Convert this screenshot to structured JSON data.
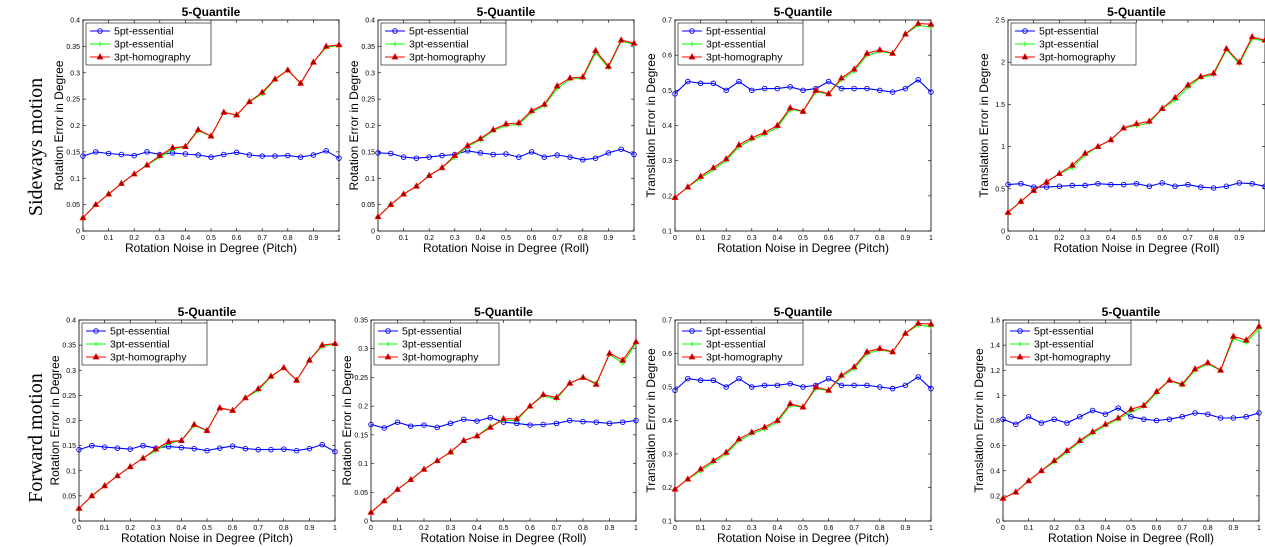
{
  "row_labels": [
    "Sideways motion",
    "Forward motion"
  ],
  "colors": {
    "5pt-essential": "#0000ff",
    "3pt-essential": "#00ff00",
    "3pt-homography": "#ff0000",
    "homography_marker_fill": "#8b0000"
  },
  "chart_data": [
    {
      "type": "line",
      "title": "5-Quantile",
      "xlabel": "Rotation Noise in Degree (Pitch)",
      "ylabel": "Rotation Error in Degree",
      "xlim": [
        0,
        1
      ],
      "ylim": [
        0,
        0.4
      ],
      "xticks": [
        "0",
        "0.1",
        "0.2",
        "0.3",
        "0.4",
        "0.5",
        "0.6",
        "0.7",
        "0.8",
        "0.9",
        "1"
      ],
      "yticks": [
        "0",
        "0.05",
        "0.1",
        "0.15",
        "0.2",
        "0.25",
        "0.3",
        "0.35",
        "0.4"
      ],
      "legend": "top-left",
      "x": [
        0,
        0.05,
        0.1,
        0.15,
        0.2,
        0.25,
        0.3,
        0.35,
        0.4,
        0.45,
        0.5,
        0.55,
        0.6,
        0.65,
        0.7,
        0.75,
        0.8,
        0.85,
        0.9,
        0.95,
        1
      ],
      "series": [
        {
          "name": "5pt-essential",
          "marker": "circle",
          "values": [
            0.142,
            0.15,
            0.147,
            0.145,
            0.143,
            0.15,
            0.145,
            0.148,
            0.146,
            0.144,
            0.14,
            0.145,
            0.149,
            0.144,
            0.142,
            0.142,
            0.143,
            0.14,
            0.144,
            0.152,
            0.138
          ]
        },
        {
          "name": "3pt-essential",
          "marker": "plus",
          "values": [
            0.025,
            0.05,
            0.07,
            0.09,
            0.108,
            0.125,
            0.14,
            0.155,
            0.16,
            0.19,
            0.18,
            0.225,
            0.22,
            0.245,
            0.26,
            0.287,
            0.305,
            0.28,
            0.32,
            0.348,
            0.352
          ]
        },
        {
          "name": "3pt-homography",
          "marker": "triangle",
          "values": [
            0.025,
            0.05,
            0.07,
            0.09,
            0.108,
            0.125,
            0.143,
            0.158,
            0.16,
            0.192,
            0.18,
            0.225,
            0.22,
            0.245,
            0.263,
            0.288,
            0.305,
            0.28,
            0.32,
            0.35,
            0.353
          ]
        }
      ]
    },
    {
      "type": "line",
      "title": "5-Quantile",
      "xlabel": "Rotation Noise in Degree (Roll)",
      "ylabel": "Rotation Error in Degree",
      "xlim": [
        0,
        1
      ],
      "ylim": [
        0,
        0.4
      ],
      "xticks": [
        "0",
        "0.1",
        "0.2",
        "0.3",
        "0.4",
        "0.5",
        "0.6",
        "0.7",
        "0.8",
        "0.9",
        "1"
      ],
      "yticks": [
        "0",
        "0.05",
        "0.1",
        "0.15",
        "0.2",
        "0.25",
        "0.3",
        "0.35",
        "0.4"
      ],
      "legend": "top-left",
      "x": [
        0,
        0.05,
        0.1,
        0.15,
        0.2,
        0.25,
        0.3,
        0.35,
        0.4,
        0.45,
        0.5,
        0.55,
        0.6,
        0.65,
        0.7,
        0.75,
        0.8,
        0.85,
        0.9,
        0.95,
        1
      ],
      "series": [
        {
          "name": "5pt-essential",
          "marker": "circle",
          "values": [
            0.148,
            0.147,
            0.14,
            0.138,
            0.14,
            0.143,
            0.145,
            0.152,
            0.148,
            0.145,
            0.146,
            0.14,
            0.15,
            0.14,
            0.144,
            0.14,
            0.135,
            0.138,
            0.148,
            0.155,
            0.145
          ]
        },
        {
          "name": "3pt-essential",
          "marker": "plus",
          "values": [
            0.027,
            0.05,
            0.07,
            0.085,
            0.105,
            0.12,
            0.14,
            0.16,
            0.173,
            0.19,
            0.2,
            0.202,
            0.225,
            0.238,
            0.27,
            0.288,
            0.29,
            0.338,
            0.31,
            0.36,
            0.354
          ]
        },
        {
          "name": "3pt-homography",
          "marker": "triangle",
          "values": [
            0.027,
            0.05,
            0.07,
            0.085,
            0.105,
            0.12,
            0.143,
            0.162,
            0.175,
            0.192,
            0.203,
            0.205,
            0.228,
            0.24,
            0.275,
            0.29,
            0.292,
            0.342,
            0.312,
            0.362,
            0.356
          ]
        }
      ]
    },
    {
      "type": "line",
      "title": "5-Quantile",
      "xlabel": "Rotation Noise in Degree (Pitch)",
      "ylabel": "Translation Error in Degree",
      "xlim": [
        0,
        1
      ],
      "ylim": [
        0.1,
        0.7
      ],
      "xticks": [
        "0",
        "0.1",
        "0.2",
        "0.3",
        "0.4",
        "0.5",
        "0.6",
        "0.7",
        "0.8",
        "0.9",
        "1"
      ],
      "yticks": [
        "0.1",
        "0.2",
        "0.3",
        "0.4",
        "0.5",
        "0.6",
        "0.7"
      ],
      "legend": "top-left",
      "x": [
        0,
        0.05,
        0.1,
        0.15,
        0.2,
        0.25,
        0.3,
        0.35,
        0.4,
        0.45,
        0.5,
        0.55,
        0.6,
        0.65,
        0.7,
        0.75,
        0.8,
        0.85,
        0.9,
        0.95,
        1
      ],
      "series": [
        {
          "name": "5pt-essential",
          "marker": "circle",
          "values": [
            0.49,
            0.525,
            0.52,
            0.52,
            0.5,
            0.525,
            0.5,
            0.505,
            0.505,
            0.51,
            0.5,
            0.505,
            0.525,
            0.505,
            0.505,
            0.505,
            0.5,
            0.495,
            0.505,
            0.53,
            0.495
          ]
        },
        {
          "name": "3pt-essential",
          "marker": "plus",
          "values": [
            0.195,
            0.225,
            0.25,
            0.275,
            0.3,
            0.34,
            0.36,
            0.375,
            0.395,
            0.445,
            0.44,
            0.495,
            0.49,
            0.53,
            0.555,
            0.6,
            0.61,
            0.605,
            0.66,
            0.685,
            0.68
          ]
        },
        {
          "name": "3pt-homography",
          "marker": "triangle",
          "values": [
            0.195,
            0.225,
            0.255,
            0.28,
            0.305,
            0.345,
            0.365,
            0.38,
            0.4,
            0.45,
            0.44,
            0.5,
            0.49,
            0.535,
            0.56,
            0.605,
            0.615,
            0.605,
            0.66,
            0.69,
            0.688
          ]
        }
      ]
    },
    {
      "type": "line",
      "title": "5-Quantile",
      "xlabel": "Rotation Noise in Degree (Roll)",
      "ylabel": "Translation Error in Degree",
      "xlim": [
        0,
        1
      ],
      "ylim": [
        0,
        2.5
      ],
      "xticks": [
        "0",
        "0.1",
        "0.2",
        "0.3",
        "0.4",
        "0.5",
        "0.6",
        "0.7",
        "0.8",
        "0.9"
      ],
      "yticks": [
        "0",
        "0.5",
        "1",
        "1.5",
        "2",
        "2.5"
      ],
      "legend": "top-left",
      "x": [
        0,
        0.05,
        0.1,
        0.15,
        0.2,
        0.25,
        0.3,
        0.35,
        0.4,
        0.45,
        0.5,
        0.55,
        0.6,
        0.65,
        0.7,
        0.75,
        0.8,
        0.85,
        0.9,
        0.95,
        1
      ],
      "series": [
        {
          "name": "5pt-essential",
          "marker": "circle",
          "values": [
            0.55,
            0.56,
            0.52,
            0.52,
            0.53,
            0.54,
            0.54,
            0.56,
            0.55,
            0.55,
            0.56,
            0.53,
            0.57,
            0.53,
            0.55,
            0.52,
            0.51,
            0.53,
            0.57,
            0.56,
            0.53
          ]
        },
        {
          "name": "3pt-essential",
          "marker": "plus",
          "values": [
            0.22,
            0.35,
            0.48,
            0.58,
            0.68,
            0.75,
            0.9,
            1.0,
            1.08,
            1.22,
            1.25,
            1.28,
            1.45,
            1.55,
            1.7,
            1.82,
            1.85,
            2.15,
            1.98,
            2.28,
            2.25
          ]
        },
        {
          "name": "3pt-homography",
          "marker": "triangle",
          "values": [
            0.22,
            0.35,
            0.48,
            0.58,
            0.68,
            0.78,
            0.92,
            1.0,
            1.08,
            1.22,
            1.27,
            1.3,
            1.45,
            1.58,
            1.73,
            1.83,
            1.87,
            2.16,
            2.0,
            2.3,
            2.26
          ]
        }
      ]
    },
    {
      "type": "line",
      "title": "5-Quantile",
      "xlabel": "Rotation Noise in Degree (Pitch)",
      "ylabel": "Rotation Error in Degree",
      "xlim": [
        0,
        1
      ],
      "ylim": [
        0,
        0.4
      ],
      "xticks": [
        "0",
        "0.1",
        "0.2",
        "0.3",
        "0.4",
        "0.5",
        "0.6",
        "0.7",
        "0.8",
        "0.9",
        "1"
      ],
      "yticks": [
        "0",
        "0.05",
        "0.1",
        "0.15",
        "0.2",
        "0.25",
        "0.3",
        "0.35",
        "0.4"
      ],
      "legend": "top-left",
      "x": [
        0,
        0.05,
        0.1,
        0.15,
        0.2,
        0.25,
        0.3,
        0.35,
        0.4,
        0.45,
        0.5,
        0.55,
        0.6,
        0.65,
        0.7,
        0.75,
        0.8,
        0.85,
        0.9,
        0.95,
        1
      ],
      "series": [
        {
          "name": "5pt-essential",
          "marker": "circle",
          "values": [
            0.142,
            0.15,
            0.147,
            0.145,
            0.143,
            0.15,
            0.145,
            0.148,
            0.146,
            0.144,
            0.14,
            0.145,
            0.149,
            0.144,
            0.142,
            0.142,
            0.143,
            0.14,
            0.144,
            0.152,
            0.138
          ]
        },
        {
          "name": "3pt-essential",
          "marker": "plus",
          "values": [
            0.025,
            0.05,
            0.07,
            0.09,
            0.108,
            0.125,
            0.14,
            0.155,
            0.16,
            0.19,
            0.18,
            0.225,
            0.22,
            0.245,
            0.26,
            0.287,
            0.305,
            0.28,
            0.32,
            0.348,
            0.352
          ]
        },
        {
          "name": "3pt-homography",
          "marker": "triangle",
          "values": [
            0.025,
            0.05,
            0.07,
            0.09,
            0.108,
            0.125,
            0.143,
            0.158,
            0.16,
            0.192,
            0.18,
            0.225,
            0.22,
            0.245,
            0.263,
            0.288,
            0.305,
            0.28,
            0.32,
            0.35,
            0.353
          ]
        }
      ]
    },
    {
      "type": "line",
      "title": "5-Quantile",
      "xlabel": "Rotation Noise in Degree (Roll)",
      "ylabel": "Rotation Error in Degree",
      "xlim": [
        0,
        1
      ],
      "ylim": [
        0,
        0.35
      ],
      "xticks": [
        "0",
        "0.1",
        "0.2",
        "0.3",
        "0.4",
        "0.5",
        "0.6",
        "0.7",
        "0.8",
        "0.9",
        "1"
      ],
      "yticks": [
        "0",
        "0.05",
        "0.1",
        "0.15",
        "0.2",
        "0.25",
        "0.3",
        "0.35"
      ],
      "legend": "top-left",
      "x": [
        0,
        0.05,
        0.1,
        0.15,
        0.2,
        0.25,
        0.3,
        0.35,
        0.4,
        0.45,
        0.5,
        0.55,
        0.6,
        0.65,
        0.7,
        0.75,
        0.8,
        0.85,
        0.9,
        0.95,
        1
      ],
      "series": [
        {
          "name": "5pt-essential",
          "marker": "circle",
          "values": [
            0.168,
            0.162,
            0.172,
            0.165,
            0.167,
            0.163,
            0.17,
            0.177,
            0.174,
            0.18,
            0.172,
            0.17,
            0.167,
            0.168,
            0.17,
            0.175,
            0.173,
            0.172,
            0.17,
            0.172,
            0.175
          ]
        },
        {
          "name": "3pt-essential",
          "marker": "plus",
          "values": [
            0.015,
            0.035,
            0.055,
            0.072,
            0.09,
            0.105,
            0.12,
            0.14,
            0.148,
            0.165,
            0.175,
            0.175,
            0.2,
            0.218,
            0.212,
            0.24,
            0.25,
            0.24,
            0.29,
            0.275,
            0.31
          ]
        },
        {
          "name": "3pt-homography",
          "marker": "triangle",
          "values": [
            0.015,
            0.035,
            0.055,
            0.072,
            0.09,
            0.105,
            0.12,
            0.14,
            0.148,
            0.163,
            0.178,
            0.178,
            0.2,
            0.22,
            0.215,
            0.24,
            0.25,
            0.238,
            0.292,
            0.28,
            0.312
          ]
        }
      ]
    },
    {
      "type": "line",
      "title": "5-Quantile",
      "xlabel": "Rotation Noise in Degree (Pitch)",
      "ylabel": "Translation Error in Degree",
      "xlim": [
        0,
        1
      ],
      "ylim": [
        0.1,
        0.7
      ],
      "xticks": [
        "0",
        "0.1",
        "0.2",
        "0.3",
        "0.4",
        "0.5",
        "0.6",
        "0.7",
        "0.8",
        "0.9",
        "1"
      ],
      "yticks": [
        "0.1",
        "0.2",
        "0.3",
        "0.4",
        "0.5",
        "0.6",
        "0.7"
      ],
      "legend": "top-left",
      "x": [
        0,
        0.05,
        0.1,
        0.15,
        0.2,
        0.25,
        0.3,
        0.35,
        0.4,
        0.45,
        0.5,
        0.55,
        0.6,
        0.65,
        0.7,
        0.75,
        0.8,
        0.85,
        0.9,
        0.95,
        1
      ],
      "series": [
        {
          "name": "5pt-essential",
          "marker": "circle",
          "values": [
            0.49,
            0.525,
            0.52,
            0.52,
            0.5,
            0.525,
            0.5,
            0.505,
            0.505,
            0.51,
            0.5,
            0.505,
            0.525,
            0.505,
            0.505,
            0.505,
            0.5,
            0.495,
            0.505,
            0.53,
            0.495
          ]
        },
        {
          "name": "3pt-essential",
          "marker": "plus",
          "values": [
            0.195,
            0.225,
            0.25,
            0.275,
            0.3,
            0.34,
            0.36,
            0.375,
            0.395,
            0.445,
            0.44,
            0.495,
            0.49,
            0.53,
            0.555,
            0.6,
            0.61,
            0.605,
            0.66,
            0.685,
            0.68
          ]
        },
        {
          "name": "3pt-homography",
          "marker": "triangle",
          "values": [
            0.195,
            0.225,
            0.255,
            0.28,
            0.305,
            0.345,
            0.365,
            0.38,
            0.4,
            0.45,
            0.44,
            0.5,
            0.49,
            0.535,
            0.56,
            0.605,
            0.615,
            0.605,
            0.66,
            0.69,
            0.688
          ]
        }
      ]
    },
    {
      "type": "line",
      "title": "5-Quantile",
      "xlabel": "Rotation Noise in Degree (Roll)",
      "ylabel": "Translation Error in Degree",
      "xlim": [
        0,
        1
      ],
      "ylim": [
        0,
        1.6
      ],
      "xticks": [
        "0",
        "0.1",
        "0.2",
        "0.3",
        "0.4",
        "0.5",
        "0.6",
        "0.7",
        "0.8",
        "0.9",
        "1"
      ],
      "yticks": [
        "0",
        "0.2",
        "0.4",
        "0.6",
        "0.8",
        "1",
        "1.2",
        "1.4",
        "1.6"
      ],
      "legend": "top-left",
      "x": [
        0,
        0.05,
        0.1,
        0.15,
        0.2,
        0.25,
        0.3,
        0.35,
        0.4,
        0.45,
        0.5,
        0.55,
        0.6,
        0.65,
        0.7,
        0.75,
        0.8,
        0.85,
        0.9,
        0.95,
        1
      ],
      "series": [
        {
          "name": "5pt-essential",
          "marker": "circle",
          "values": [
            0.81,
            0.77,
            0.83,
            0.78,
            0.81,
            0.78,
            0.83,
            0.88,
            0.85,
            0.9,
            0.83,
            0.81,
            0.8,
            0.81,
            0.83,
            0.86,
            0.85,
            0.82,
            0.82,
            0.83,
            0.86
          ]
        },
        {
          "name": "3pt-essential",
          "marker": "plus",
          "values": [
            0.18,
            0.23,
            0.32,
            0.4,
            0.47,
            0.55,
            0.63,
            0.7,
            0.76,
            0.81,
            0.87,
            0.91,
            1.02,
            1.12,
            1.08,
            1.2,
            1.25,
            1.2,
            1.45,
            1.42,
            1.53
          ]
        },
        {
          "name": "3pt-homography",
          "marker": "triangle",
          "values": [
            0.18,
            0.23,
            0.32,
            0.4,
            0.48,
            0.56,
            0.64,
            0.71,
            0.77,
            0.82,
            0.89,
            0.92,
            1.03,
            1.12,
            1.09,
            1.21,
            1.26,
            1.2,
            1.47,
            1.44,
            1.55
          ]
        }
      ]
    }
  ]
}
